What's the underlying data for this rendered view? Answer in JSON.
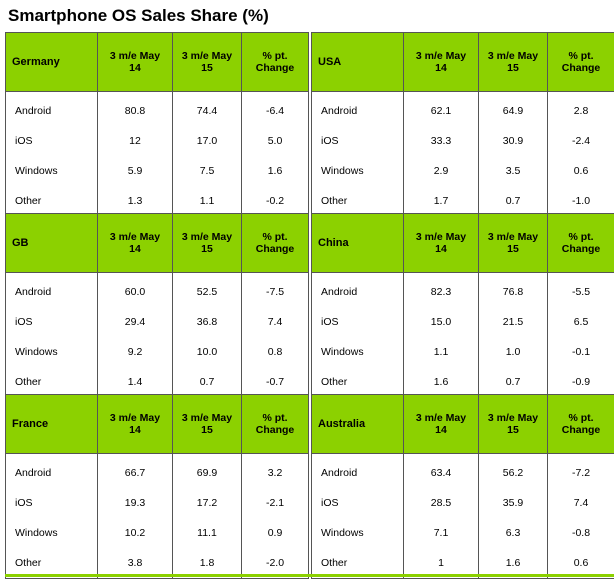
{
  "title": "Smartphone OS Sales Share (%)",
  "chart_data": {
    "type": "table",
    "title": "Smartphone OS Sales Share (%)",
    "columns": [
      "3 m/e May\n14",
      "3 m/e May\n15",
      "% pt.\nChange"
    ],
    "tables": [
      {
        "region": "Germany",
        "rows": [
          {
            "os": "Android",
            "may14": "80.8",
            "may15": "74.4",
            "change": "-6.4"
          },
          {
            "os": "iOS",
            "may14": "12",
            "may15": "17.0",
            "change": "5.0"
          },
          {
            "os": "Windows",
            "may14": "5.9",
            "may15": "7.5",
            "change": "1.6"
          },
          {
            "os": "Other",
            "may14": "1.3",
            "may15": "1.1",
            "change": "-0.2"
          }
        ]
      },
      {
        "region": "USA",
        "rows": [
          {
            "os": "Android",
            "may14": "62.1",
            "may15": "64.9",
            "change": "2.8"
          },
          {
            "os": "iOS",
            "may14": "33.3",
            "may15": "30.9",
            "change": "-2.4"
          },
          {
            "os": "Windows",
            "may14": "2.9",
            "may15": "3.5",
            "change": "0.6"
          },
          {
            "os": "Other",
            "may14": "1.7",
            "may15": "0.7",
            "change": "-1.0"
          }
        ]
      },
      {
        "region": "GB",
        "rows": [
          {
            "os": "Android",
            "may14": "60.0",
            "may15": "52.5",
            "change": "-7.5"
          },
          {
            "os": "iOS",
            "may14": "29.4",
            "may15": "36.8",
            "change": "7.4"
          },
          {
            "os": "Windows",
            "may14": "9.2",
            "may15": "10.0",
            "change": "0.8"
          },
          {
            "os": "Other",
            "may14": "1.4",
            "may15": "0.7",
            "change": "-0.7"
          }
        ]
      },
      {
        "region": "China",
        "rows": [
          {
            "os": "Android",
            "may14": "82.3",
            "may15": "76.8",
            "change": "-5.5"
          },
          {
            "os": "iOS",
            "may14": "15.0",
            "may15": "21.5",
            "change": "6.5"
          },
          {
            "os": "Windows",
            "may14": "1.1",
            "may15": "1.0",
            "change": "-0.1"
          },
          {
            "os": "Other",
            "may14": "1.6",
            "may15": "0.7",
            "change": "-0.9"
          }
        ]
      },
      {
        "region": "France",
        "rows": [
          {
            "os": "Android",
            "may14": "66.7",
            "may15": "69.9",
            "change": "3.2"
          },
          {
            "os": "iOS",
            "may14": "19.3",
            "may15": "17.2",
            "change": "-2.1"
          },
          {
            "os": "Windows",
            "may14": "10.2",
            "may15": "11.1",
            "change": "0.9"
          },
          {
            "os": "Other",
            "may14": "3.8",
            "may15": "1.8",
            "change": "-2.0"
          }
        ]
      },
      {
        "region": "Australia",
        "rows": [
          {
            "os": "Android",
            "may14": "63.4",
            "may15": "56.2",
            "change": "-7.2"
          },
          {
            "os": "iOS",
            "may14": "28.5",
            "may15": "35.9",
            "change": "7.4"
          },
          {
            "os": "Windows",
            "may14": "7.1",
            "may15": "6.3",
            "change": "-0.8"
          },
          {
            "os": "Other",
            "may14": "1",
            "may15": "1.6",
            "change": "0.6"
          }
        ]
      }
    ],
    "header_color": "#8cd100"
  }
}
